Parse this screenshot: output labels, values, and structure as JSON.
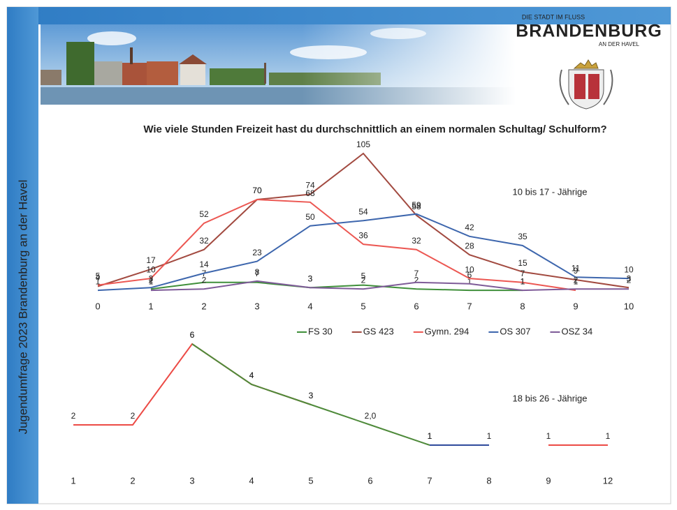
{
  "header": {
    "side_text": "Jugendumfrage 2023 Brandenburg an der Havel",
    "logo_tagline": "DIE STADT IM FLUSS",
    "logo_name": "BRANDENBURG",
    "logo_sub": "AN DER HAVEL"
  },
  "chart_data": [
    {
      "type": "line",
      "title": "Wie viele Stunden Freizeit hast du durchschnittlich an einem normalen Schultag/ Schulform?",
      "annotation": "10 bis 17 - Jährige",
      "x": [
        0,
        1,
        2,
        3,
        4,
        5,
        6,
        7,
        8,
        9,
        10
      ],
      "xlim": [
        0,
        10
      ],
      "xticks": [
        0,
        1,
        2,
        3,
        4,
        5,
        6,
        7,
        8,
        9,
        10
      ],
      "ylim": [
        0,
        105
      ],
      "series": [
        {
          "name": "FS 30",
          "color": "#3f8f3a",
          "values": [
            null,
            2,
            7,
            7,
            3,
            5,
            2,
            1,
            1,
            null,
            null
          ]
        },
        {
          "name": "GS 423",
          "color": "#a24a40",
          "values": [
            4,
            17,
            32,
            70,
            74,
            105,
            58,
            28,
            15,
            9,
            3
          ]
        },
        {
          "name": "Gymn. 294",
          "color": "#ec5752",
          "values": [
            5,
            10,
            52,
            70,
            68,
            36,
            32,
            10,
            7,
            1,
            null
          ]
        },
        {
          "name": "OS 307",
          "color": "#3d66ad",
          "values": [
            1,
            3,
            14,
            23,
            50,
            54,
            59,
            42,
            35,
            11,
            10
          ]
        },
        {
          "name": "OSZ 34",
          "color": "#7e5b98",
          "values": [
            null,
            1,
            2,
            8,
            3,
            2,
            7,
            6,
            1,
            2,
            2
          ]
        }
      ]
    },
    {
      "type": "line",
      "annotation": "18 bis 26 - Jährige",
      "categories": [
        "1",
        "2",
        "3",
        "4",
        "5",
        "6",
        "7",
        "8",
        "9",
        "12"
      ],
      "ylim": [
        0,
        7
      ],
      "series": [
        {
          "color": "#ec4a45",
          "values": [
            2,
            2,
            6,
            4,
            3,
            null,
            null,
            null,
            null,
            null
          ]
        },
        {
          "color": "#4e8a3a",
          "values": [
            null,
            null,
            6,
            4,
            3,
            2,
            1,
            null,
            null,
            null
          ],
          "value_labels": [
            null,
            null,
            "6",
            "4",
            "3",
            "2,0",
            "1",
            null,
            null,
            null
          ]
        },
        {
          "color": "#2f4b9c",
          "values": [
            null,
            null,
            null,
            null,
            null,
            null,
            1,
            1,
            null,
            null
          ]
        },
        {
          "color": "#ec4a45",
          "values": [
            null,
            null,
            null,
            null,
            null,
            null,
            null,
            null,
            1,
            1
          ]
        }
      ]
    }
  ]
}
